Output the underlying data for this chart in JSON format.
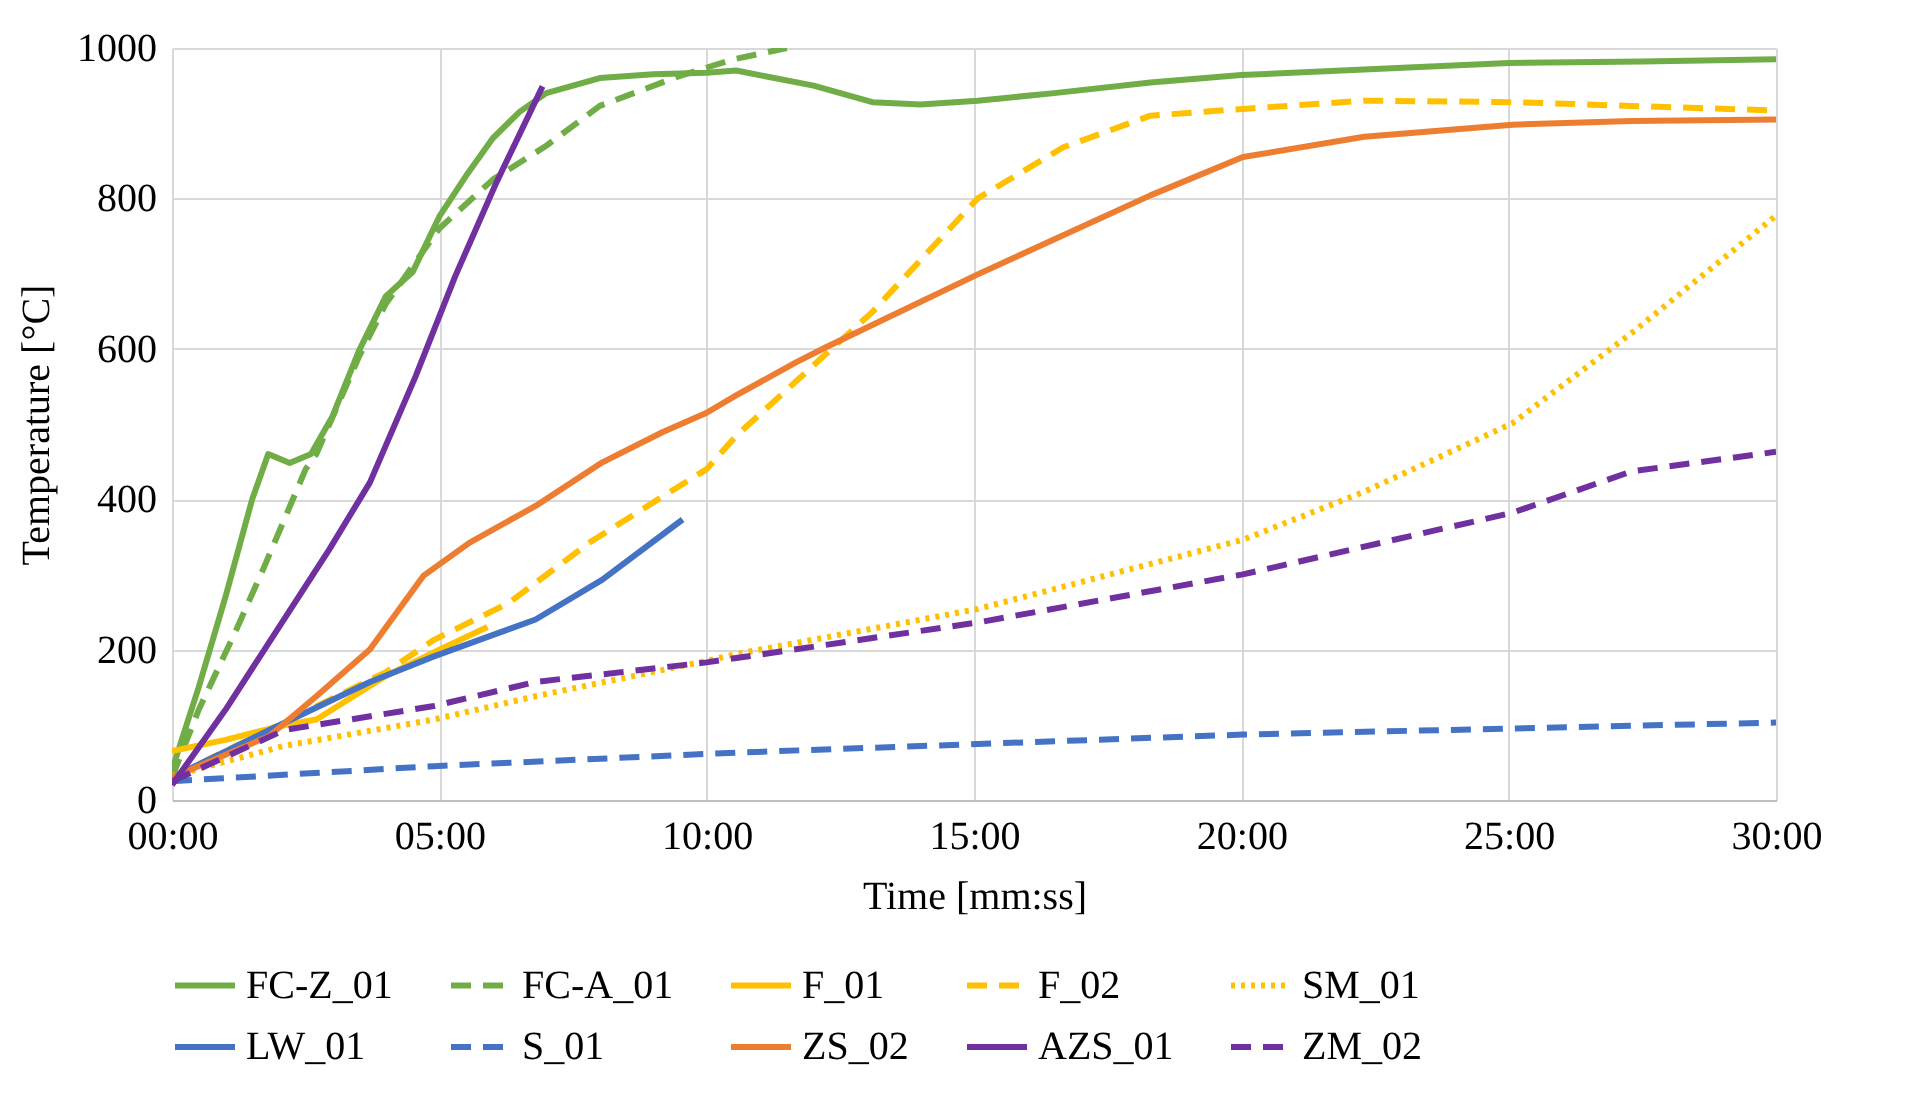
{
  "chart_data": {
    "type": "line",
    "xlabel": "Time [mm:ss]",
    "ylabel": "Temperature [°C]",
    "xlim": [
      0,
      30
    ],
    "ylim": [
      0,
      1000
    ],
    "xticks": [
      {
        "value": 0,
        "label": "00:00"
      },
      {
        "value": 5,
        "label": "05:00"
      },
      {
        "value": 10,
        "label": "10:00"
      },
      {
        "value": 15,
        "label": "15:00"
      },
      {
        "value": 20,
        "label": "20:00"
      },
      {
        "value": 25,
        "label": "25:00"
      },
      {
        "value": 30,
        "label": "30:00"
      }
    ],
    "yticks": [
      0,
      200,
      400,
      600,
      800,
      1000
    ],
    "grid": true,
    "legend": "bottom",
    "marker": "none",
    "series": [
      {
        "name": "FC-Z_01",
        "color": "#70ad47",
        "line_style": "solid",
        "x": [
          0,
          0.5,
          1,
          1.5,
          1.8,
          2.2,
          2.6,
          3,
          3.5,
          4,
          4.5,
          5,
          5.5,
          6,
          6.5,
          7,
          8,
          9,
          10,
          10.55,
          12,
          13.1,
          14,
          15.07,
          16.5,
          18.3,
          20,
          22.5,
          25,
          27.5,
          30
        ],
        "values": [
          40,
          150,
          270,
          400,
          460,
          448,
          460,
          510,
          598,
          670,
          702,
          776,
          830,
          880,
          915,
          940,
          960,
          965,
          967,
          970,
          950,
          928,
          925,
          930,
          940,
          954,
          964,
          972,
          980,
          982,
          985
        ]
      },
      {
        "name": "FC-A_01",
        "color": "#70ad47",
        "line_style": "dashed",
        "x": [
          0,
          0.5,
          1.2,
          1.7,
          2.5,
          2.7,
          3.5,
          4,
          5,
          6,
          7,
          8,
          9.5,
          10.5,
          11.5
        ],
        "values": [
          30,
          120,
          226,
          306,
          440,
          460,
          590,
          660,
          760,
          825,
          870,
          923,
          963,
          985,
          1000
        ]
      },
      {
        "name": "F_01",
        "color": "#ffc000",
        "line_style": "solid",
        "x": [
          0,
          1,
          2,
          2.7,
          4,
          5,
          5.9
        ],
        "values": [
          65,
          80,
          98,
          107,
          165,
          200,
          230
        ]
      },
      {
        "name": "F_02",
        "color": "#ffc000",
        "line_style": "dashed",
        "x": [
          0,
          2,
          4,
          4.9,
          6.3,
          7.8,
          9.3,
          10,
          10.55,
          12.23,
          13.1,
          15.07,
          16.67,
          18.3,
          20.03,
          22.3,
          25.07,
          27.3,
          30
        ],
        "values": [
          30,
          100,
          170,
          213,
          262,
          342,
          409,
          440,
          484,
          593,
          649,
          800,
          868,
          910,
          919,
          930,
          928,
          923,
          917
        ]
      },
      {
        "name": "SM_01",
        "color": "#ffc000",
        "line_style": "dotted",
        "x": [
          0,
          2.1,
          4.9,
          6.8,
          10,
          10.55,
          15.07,
          20.03,
          22.3,
          25.07,
          27.3,
          30
        ],
        "values": [
          32,
          72,
          107,
          138,
          185,
          194,
          254,
          346,
          410,
          501,
          621,
          777
        ]
      },
      {
        "name": "LW_01",
        "color": "#4472c4",
        "line_style": "solid",
        "x": [
          0,
          1.82,
          3.7,
          4.9,
          6.8,
          8.05,
          9.55
        ],
        "values": [
          30,
          93,
          157,
          191,
          240,
          293,
          373
        ]
      },
      {
        "name": "S_01",
        "color": "#4472c4",
        "line_style": "dashed",
        "x": [
          0,
          4.9,
          10.55,
          20.03,
          30
        ],
        "values": [
          25,
          45,
          63,
          87,
          103
        ]
      },
      {
        "name": "ZS_02",
        "color": "#ed7d31",
        "line_style": "solid",
        "x": [
          0,
          1.82,
          2.7,
          3.7,
          4.7,
          5.56,
          6.8,
          8.05,
          9.17,
          10,
          10.55,
          11.67,
          12.23,
          15.07,
          18.3,
          20.03,
          22.3,
          25.07,
          27.3,
          30
        ],
        "values": [
          30,
          85,
          138,
          200,
          298,
          342,
          391,
          449,
          489,
          515,
          538,
          582,
          602,
          699,
          804,
          855,
          882,
          898,
          903,
          905
        ]
      },
      {
        "name": "AZS_01",
        "color": "#7030a0",
        "line_style": "solid",
        "x": [
          0,
          1,
          2.94,
          3.7,
          4.56,
          5.3,
          6.06,
          6.93
        ],
        "values": [
          20,
          120,
          333,
          422,
          564,
          697,
          820,
          949
        ]
      },
      {
        "name": "ZM_02",
        "color": "#7030a0",
        "line_style": "dashed",
        "x": [
          0,
          2.1,
          4.9,
          6.8,
          10,
          15.07,
          20.03,
          25.07,
          27.3,
          30
        ],
        "values": [
          25,
          93,
          125,
          157,
          183,
          236,
          300,
          382,
          437,
          463
        ]
      }
    ]
  }
}
